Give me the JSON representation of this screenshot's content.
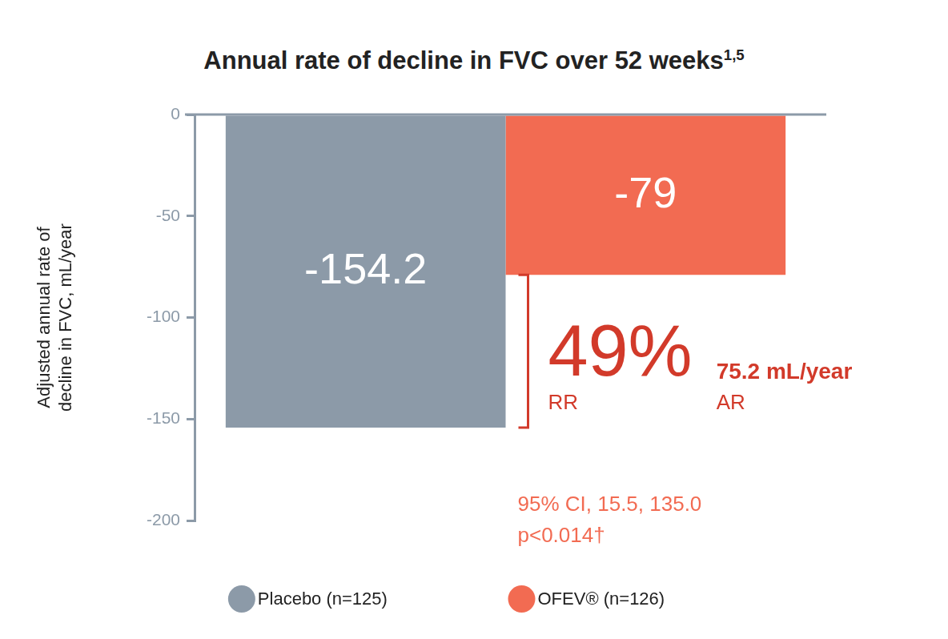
{
  "chart_data": {
    "type": "bar",
    "title": "Annual rate of decline in FVC over 52 weeks",
    "title_superscript": "1,5",
    "y_label": "Adjusted annual rate of decline in FVC, mL/year",
    "categories": [
      null
    ],
    "series": [
      {
        "name": "Placebo (n=125)",
        "color": "#8c9aa8",
        "values": [
          -154.2
        ]
      },
      {
        "name": "OFEV® (n=126)",
        "color": "#f26b52",
        "values": [
          -79
        ]
      }
    ],
    "ylim": [
      -200,
      0
    ],
    "yticks": [
      -200,
      -150,
      -100,
      -50,
      0
    ],
    "grid": false,
    "data_labels": true,
    "legend": "bottom",
    "annotations": {
      "relative_reduction": "49%",
      "relative_reduction_label": "RR",
      "absolute_reduction": "75.2 mL/year",
      "absolute_reduction_label": "AR",
      "confidence_interval": "95% CI, 15.5, 135.0",
      "p_value": "p<0.014†"
    }
  }
}
